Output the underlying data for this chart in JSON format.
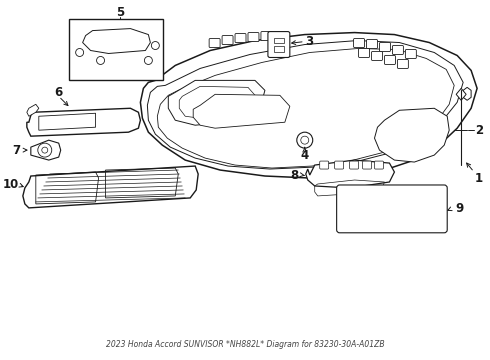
{
  "title": "2023 Honda Accord SUNVISOR *NH882L* Diagram for 83230-30A-A01ZB",
  "bg_color": "#ffffff",
  "line_color": "#1a1a1a",
  "fig_width": 4.9,
  "fig_height": 3.6,
  "dpi": 100
}
